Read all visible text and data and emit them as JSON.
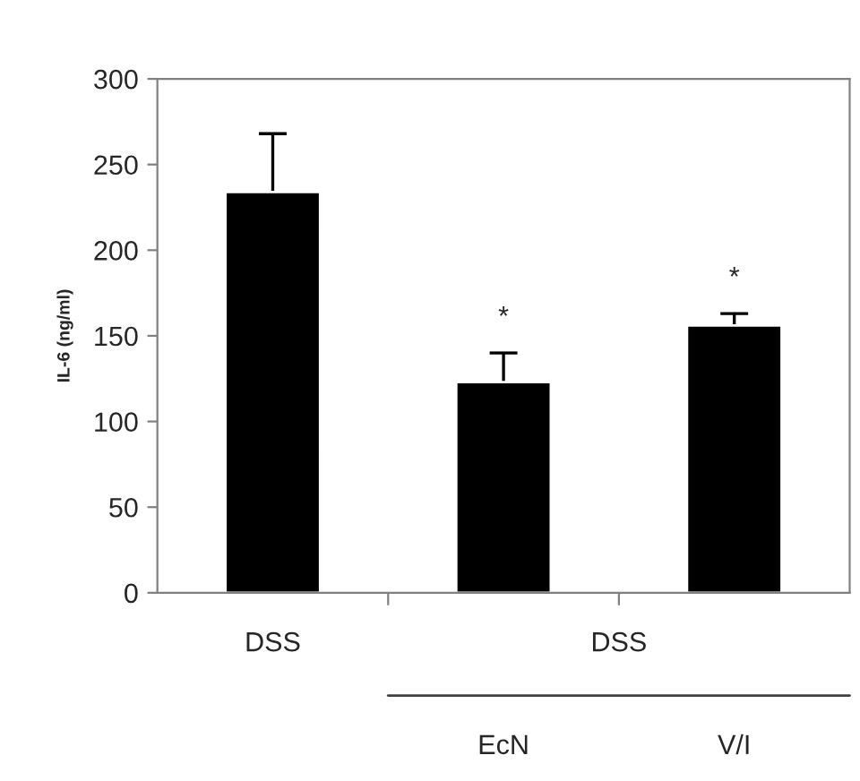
{
  "chart_data": {
    "type": "bar",
    "ylabel": "IL-6 (ng/ml)",
    "categories": [
      "DSS",
      "EcN",
      "V/I"
    ],
    "values": [
      234,
      123,
      156
    ],
    "errors": [
      [
        234,
        268
      ],
      [
        123,
        140
      ],
      [
        156,
        163
      ]
    ],
    "color": "#000000",
    "ylim": [
      0,
      300
    ],
    "yticks": [
      0,
      50,
      100,
      150,
      200,
      250,
      300
    ],
    "grid": false,
    "legend": false,
    "annotations": [
      "*",
      "*",
      "DSS"
    ]
  }
}
